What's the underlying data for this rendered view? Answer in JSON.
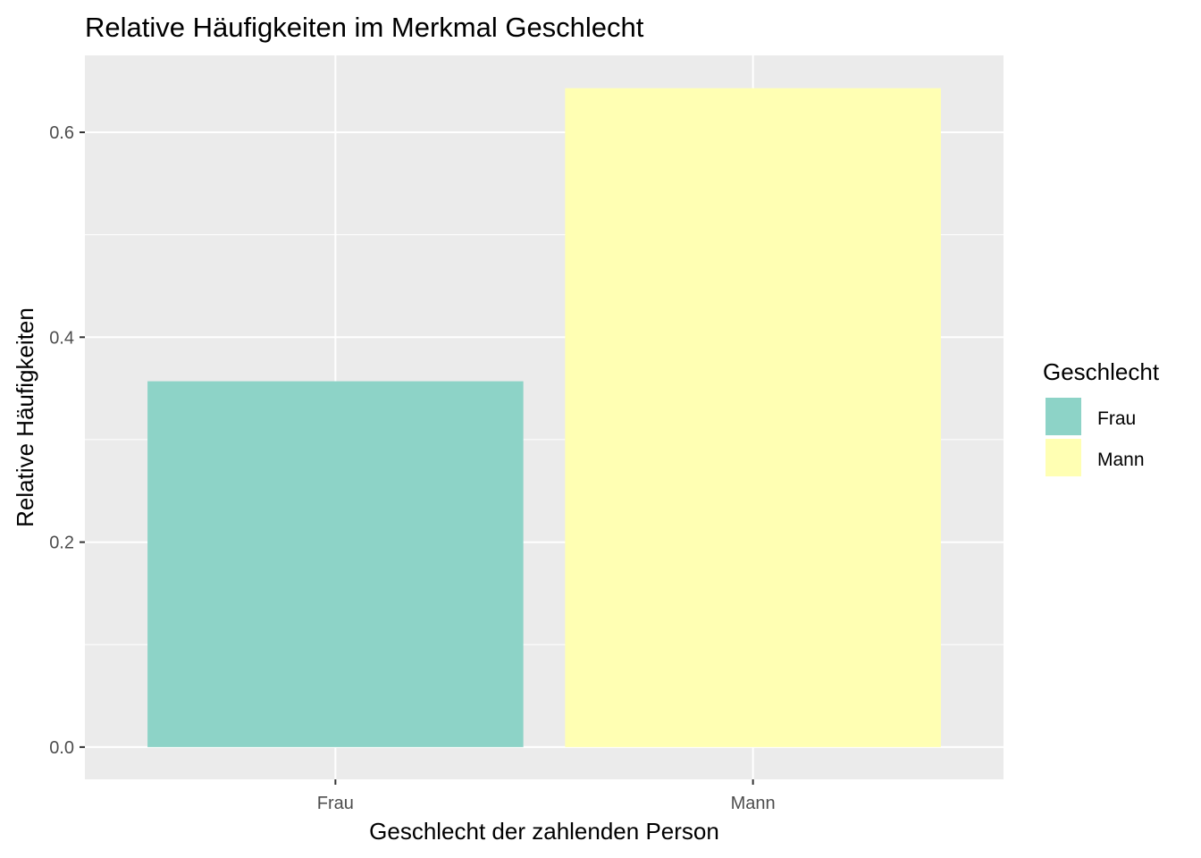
{
  "chart_data": {
    "type": "bar",
    "title": "Relative Häufigkeiten im Merkmal Geschlecht",
    "xlabel": "Geschlecht der zahlenden Person",
    "ylabel": "Relative Häufigkeiten",
    "categories": [
      "Frau",
      "Mann"
    ],
    "values": [
      0.357,
      0.643
    ],
    "colors": [
      "#8DD3C7",
      "#FFFFB3"
    ],
    "ylim": [
      -0.0315,
      0.675
    ],
    "yticks": [
      0.0,
      0.2,
      0.4,
      0.6
    ],
    "ytick_labels": [
      "0.0",
      "0.2",
      "0.4",
      "0.6"
    ],
    "grid": true,
    "panel_background": "#EBEBEB",
    "legend": {
      "title": "Geschlecht",
      "position": "right",
      "entries": [
        "Frau",
        "Mann"
      ]
    }
  }
}
